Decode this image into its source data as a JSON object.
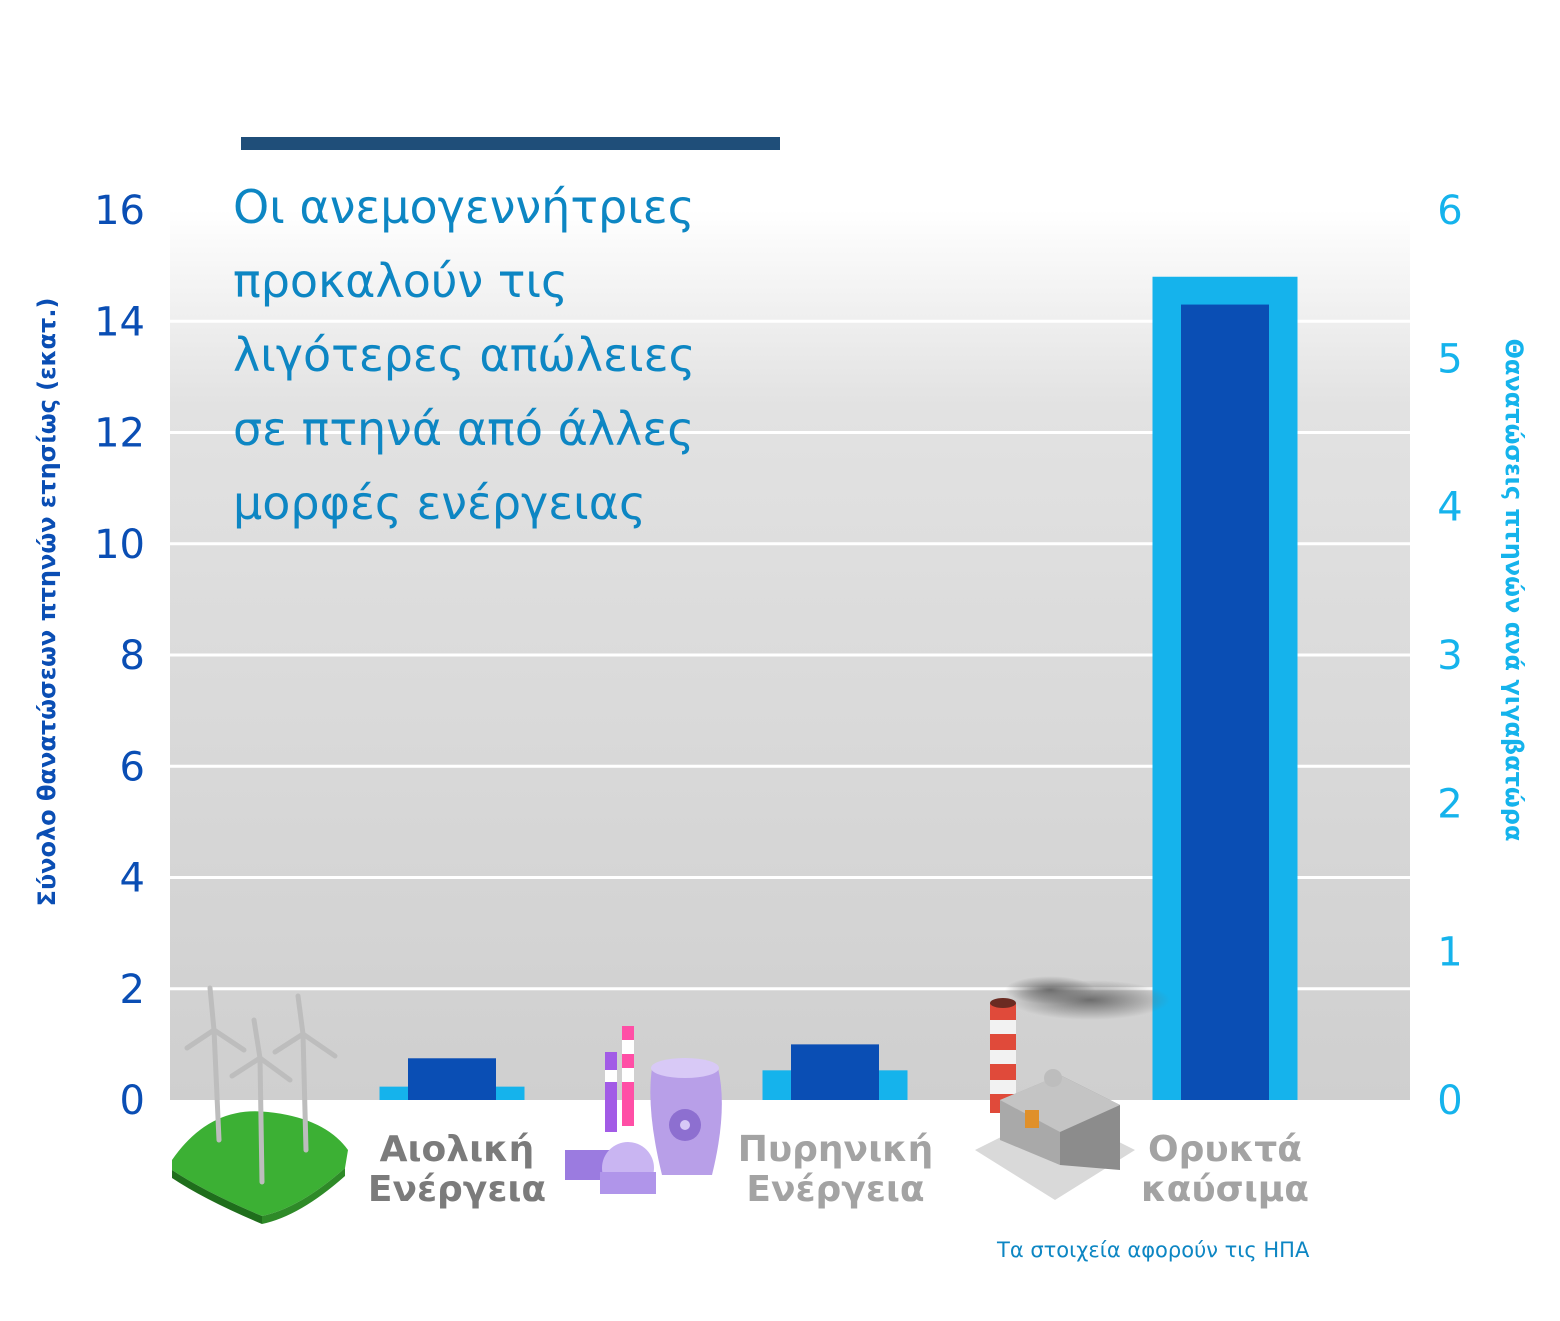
{
  "title": "Οι ανεμογεννήτριες\nπροκαλούν τις\nλιγότερες απώλειες\nσε πτηνά από άλλες\nμορφές ενέργειας",
  "footnote": "Τα στοιχεία αφορούν τις ΗΠΑ",
  "colors": {
    "title": "#0d86c3",
    "left_axis": "#0a4eb4",
    "right_axis": "#15b3ec",
    "category_label": "#a3a3a3"
  },
  "icons": [
    "wind-turbines-icon",
    "nuclear-plant-icon",
    "fossil-fuel-plant-icon"
  ],
  "chart_data": {
    "type": "bar",
    "categories": [
      "Αιολική\nΕνέργεια",
      "Πυρηνική\nΕνέργεια",
      "Ορυκτά\nκαύσιμα"
    ],
    "left_axis": {
      "label": "Σύνολο θανατώσεων πτηνών ετησίως (εκατ.)",
      "ticks": [
        "0",
        "2",
        "4",
        "6",
        "8",
        "10",
        "12",
        "14",
        "16"
      ],
      "ylim": [
        0,
        16
      ]
    },
    "right_axis": {
      "label": "Θανατώσεις πτηνών ανά γιγαβατώρα",
      "ticks": [
        "0",
        "1",
        "2",
        "3",
        "4",
        "5",
        "6"
      ],
      "ylim": [
        0,
        6
      ]
    },
    "series": [
      {
        "axis": "left",
        "values": [
          0.75,
          1.0,
          14.3
        ]
      },
      {
        "axis": "right",
        "values": [
          0.09,
          0.2,
          5.55
        ]
      }
    ],
    "grid": true
  }
}
